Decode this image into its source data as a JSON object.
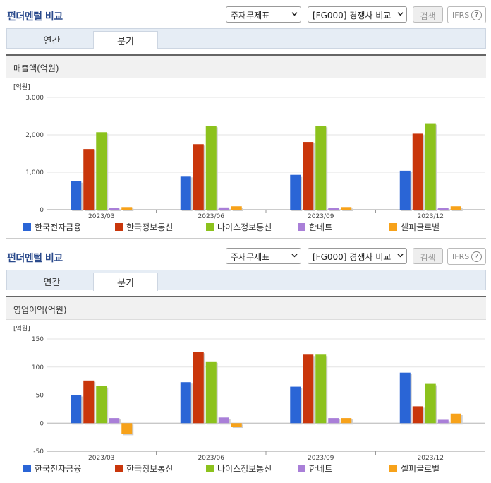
{
  "panels": [
    {
      "title": "펀더멘털 비교",
      "select_a": "주재무제표",
      "select_b": "[FG000] 경쟁사 비교",
      "search_label": "검색",
      "ifrs_label": "IFRS",
      "ifrs_help": "?",
      "tabs": [
        "연간",
        "분기"
      ],
      "active_tab": "분기",
      "section_title": "매출액(억원)"
    },
    {
      "title": "펀더멘털 비교",
      "select_a": "주재무제표",
      "select_b": "[FG000] 경쟁사 비교",
      "search_label": "검색",
      "ifrs_label": "IFRS",
      "ifrs_help": "?",
      "tabs": [
        "연간",
        "분기"
      ],
      "active_tab": "분기",
      "section_title": "영업이익(억원)"
    }
  ],
  "colors": {
    "한국전자금융": "#2a65d6",
    "한국정보통신": "#c9360b",
    "나이스정보통신": "#8cc21d",
    "한네트": "#a97fd8",
    "셀피글로벌": "#f7a21a"
  },
  "chart_data": [
    {
      "type": "bar",
      "unit_label": "[억원]",
      "categories": [
        "2023/03",
        "2023/06",
        "2023/09",
        "2023/12"
      ],
      "ylim": [
        0,
        3000
      ],
      "yticks": [
        0,
        1000,
        2000,
        3000
      ],
      "ytick_labels": [
        "0",
        "1,000",
        "2,000",
        "3,000"
      ],
      "grid": true,
      "legend_position": "bottom",
      "series": [
        {
          "name": "한국전자금융",
          "values": [
            760,
            900,
            930,
            1040
          ]
        },
        {
          "name": "한국정보통신",
          "values": [
            1620,
            1750,
            1810,
            2030
          ]
        },
        {
          "name": "나이스정보통신",
          "values": [
            2070,
            2240,
            2240,
            2310
          ]
        },
        {
          "name": "한네트",
          "values": [
            50,
            60,
            50,
            50
          ]
        },
        {
          "name": "셀피글로벌",
          "values": [
            70,
            90,
            70,
            90
          ]
        }
      ]
    },
    {
      "type": "bar",
      "unit_label": "[억원]",
      "categories": [
        "2023/03",
        "2023/06",
        "2023/09",
        "2023/12"
      ],
      "ylim": [
        -50,
        150
      ],
      "yticks": [
        -50,
        0,
        50,
        100,
        150
      ],
      "ytick_labels": [
        "-50",
        "0",
        "50",
        "100",
        "150"
      ],
      "grid": true,
      "legend_position": "bottom",
      "series": [
        {
          "name": "한국전자금융",
          "values": [
            50,
            73,
            65,
            90
          ]
        },
        {
          "name": "한국정보통신",
          "values": [
            76,
            127,
            122,
            30
          ]
        },
        {
          "name": "나이스정보통신",
          "values": [
            66,
            110,
            122,
            70
          ]
        },
        {
          "name": "한네트",
          "values": [
            9,
            10,
            9,
            6
          ]
        },
        {
          "name": "셀피글로벌",
          "values": [
            -19,
            -6,
            9,
            17
          ]
        }
      ]
    }
  ]
}
